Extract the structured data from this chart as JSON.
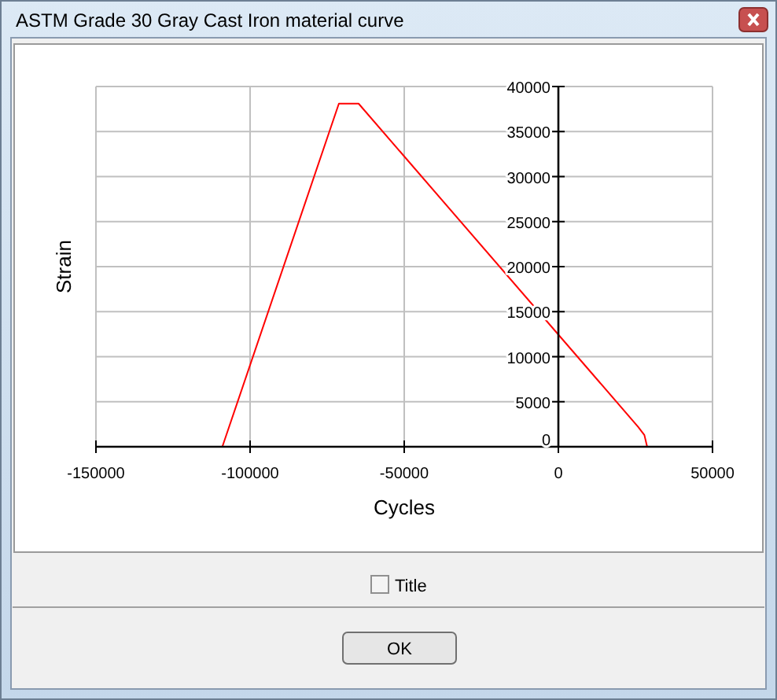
{
  "chart_data": {
    "type": "line",
    "title": "ASTM Grade 30 Gray Cast Iron material curve",
    "xlabel": "Cycles",
    "ylabel": "Strain",
    "x": [
      -109000,
      -71200,
      -64800,
      25900,
      27900,
      28800
    ],
    "series": [
      {
        "color": "#ff0000",
        "values": [
          0,
          38100,
          38100,
          2200,
          1300,
          0
        ]
      }
    ],
    "xlim": [
      -150000,
      50000
    ],
    "xticks": [
      -150000,
      -100000,
      -50000,
      0,
      50000
    ],
    "ylim": [
      0,
      40000
    ],
    "yticks": [
      0,
      5000,
      10000,
      15000,
      20000,
      25000,
      30000,
      35000,
      40000
    ],
    "grid": true,
    "marker": "none",
    "line_style": "solid",
    "annotations": [
      "Title",
      "OK"
    ]
  }
}
